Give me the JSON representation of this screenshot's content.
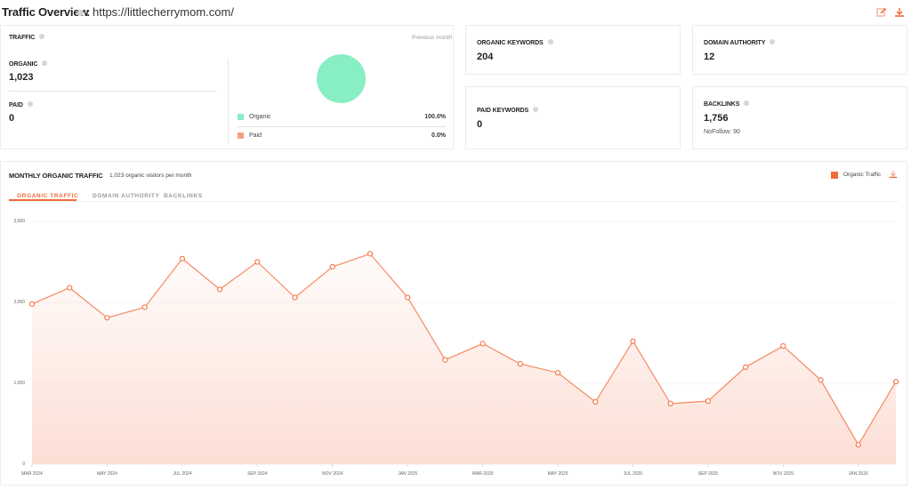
{
  "header": {
    "title": "Traffic Overview",
    "separator": ":",
    "url": "https://littlecherrymom.com/",
    "actions": [
      {
        "icon": "edit-icon",
        "label": "Edit"
      },
      {
        "icon": "download-icon",
        "label": "Download"
      }
    ]
  },
  "traffic_card": {
    "label": "TRAFFIC",
    "period": "Previous month",
    "organic": {
      "label": "ORGANIC",
      "value": "1,023"
    },
    "paid": {
      "label": "PAID",
      "value": "0"
    },
    "pie": {
      "legend": [
        {
          "name": "Organic",
          "percent": "100.0%",
          "color": "#88eec4"
        },
        {
          "name": "Paid",
          "percent": "0.0%",
          "color": "#f7a07f"
        }
      ]
    }
  },
  "stats": {
    "organic_keywords": {
      "label": "ORGANIC KEYWORDS",
      "value": "204"
    },
    "paid_keywords": {
      "label": "PAID KEYWORDS",
      "value": "0"
    },
    "domain_authority": {
      "label": "DOMAIN AUTHORITY",
      "value": "12"
    },
    "backlinks": {
      "label": "BACKLINKS",
      "value": "1,756",
      "nofollow": "NoFollow: 90"
    }
  },
  "monthly": {
    "title": "MONTHLY ORGANIC TRAFFIC",
    "subtitle": "1,023 organic visitors per month",
    "legend_label": "Organic Traffic",
    "legend_color": "#f26b3a",
    "tabs": [
      {
        "label": "ORGANIC TRAFFIC",
        "active": true
      },
      {
        "label": "DOMAIN AUTHORITY",
        "active": false
      },
      {
        "label": "BACKLINKS",
        "active": false
      }
    ]
  },
  "chart_data": {
    "type": "area",
    "title": "Monthly Organic Traffic",
    "xlabel": "",
    "ylabel": "",
    "ylim": [
      0,
      3000
    ],
    "y_ticks": [
      "0",
      "1,000",
      "2,000",
      "3,000"
    ],
    "x_tick_labels": [
      "MAR 2024",
      "MAY 2024",
      "JUL 2024",
      "SEP 2024",
      "NOV 2024",
      "JAN 2025",
      "MAR 2025",
      "MAY 2025",
      "JUL 2025",
      "SEP 2025",
      "NOV 2025",
      "JAN 2026"
    ],
    "grid": true,
    "legend_position": "top-right",
    "categories": [
      "Mar 2024",
      "Apr 2024",
      "May 2024",
      "Jun 2024",
      "Jul 2024",
      "Aug 2024",
      "Sep 2024",
      "Oct 2024",
      "Nov 2024",
      "Dec 2024",
      "Jan 2025",
      "Feb 2025",
      "Mar 2025",
      "Apr 2025",
      "May 2025",
      "Jun 2025",
      "Jul 2025",
      "Aug 2025",
      "Sep 2025",
      "Oct 2025",
      "Nov 2025",
      "Dec 2025",
      "Jan 2026",
      "Feb 2026"
    ],
    "series": [
      {
        "name": "Organic Traffic",
        "color": "#f26b3a",
        "values": [
          1980,
          2180,
          1810,
          1940,
          2540,
          2160,
          2500,
          2060,
          2440,
          2600,
          2060,
          1290,
          1490,
          1240,
          1130,
          770,
          1520,
          750,
          780,
          1200,
          1460,
          1040,
          240,
          1020
        ]
      }
    ]
  }
}
